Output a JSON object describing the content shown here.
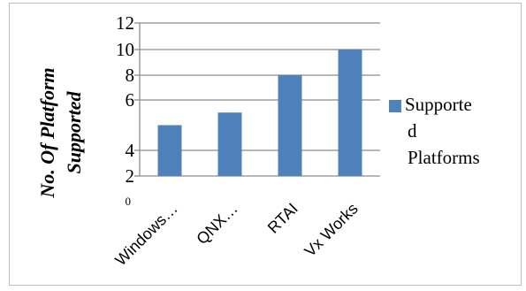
{
  "chart_data": {
    "type": "bar",
    "categories": [
      "Windows…",
      "QNX…",
      "RTAI",
      "Vx Works"
    ],
    "series": [
      {
        "name": "Supported Platforms",
        "values": [
          5,
          5.5,
          8,
          10
        ]
      }
    ],
    "ylabel": "No. Of Platform Supported",
    "yticks": [
      "12",
      "10",
      "8",
      "6",
      "4",
      "2",
      "0"
    ],
    "ylim": [
      0,
      12
    ],
    "grid": true,
    "legend_position": "right",
    "legend_lines": [
      "Supporte",
      "d",
      "Platforms"
    ],
    "bar_color": "#4f81bd",
    "gridline_color": "#8c8c8c"
  }
}
